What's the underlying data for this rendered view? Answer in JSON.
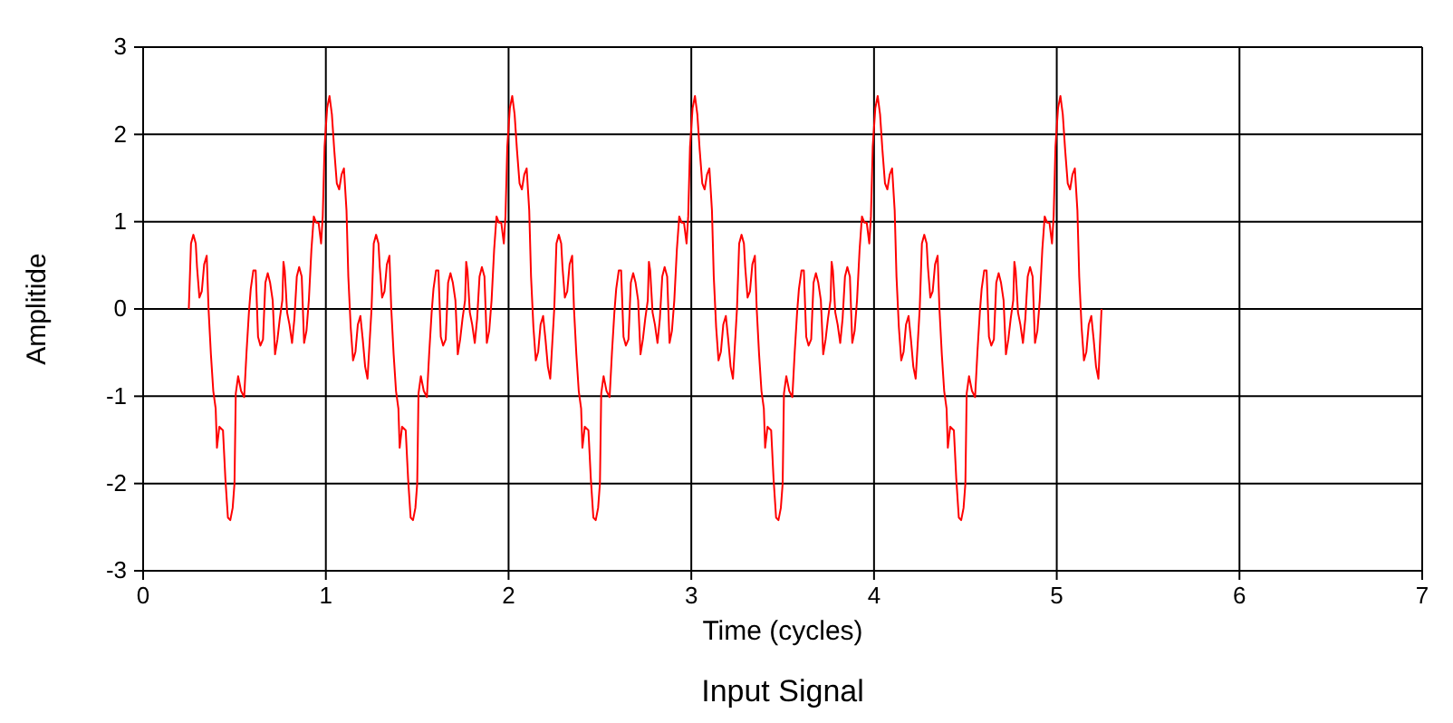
{
  "chart_data": {
    "type": "line",
    "title": "Input Signal",
    "xlabel": "Time (cycles)",
    "ylabel": "Amplitide",
    "xlim": [
      0,
      7
    ],
    "xticks": [
      0,
      1,
      2,
      3,
      4,
      5,
      6,
      7
    ],
    "ylim": [
      -3,
      3
    ],
    "yticks": [
      -3,
      -2,
      -1,
      0,
      1,
      2,
      3
    ],
    "grid": true,
    "marker": "none",
    "line_style": "solid",
    "x": [
      0.25,
      0.262,
      0.275,
      0.288,
      0.295,
      0.308,
      0.321,
      0.334,
      0.348,
      0.358,
      0.371,
      0.384,
      0.397,
      0.404,
      0.417,
      0.437,
      0.45,
      0.464,
      0.477,
      0.49,
      0.5,
      0.507,
      0.52,
      0.536,
      0.553,
      0.566,
      0.579,
      0.589,
      0.603,
      0.616,
      0.629,
      0.642,
      0.656,
      0.669,
      0.682,
      0.695,
      0.709,
      0.722,
      0.735,
      0.748,
      0.762,
      0.768,
      0.775,
      0.788,
      0.801,
      0.815,
      0.828,
      0.841,
      0.854,
      0.868,
      0.881,
      0.894,
      0.907,
      0.921,
      0.934,
      0.947,
      0.96,
      0.974,
      0.983,
      0.993,
      1.007,
      1.02,
      1.033,
      1.046,
      1.06,
      1.073,
      1.086,
      1.099,
      1.113,
      1.123,
      1.136,
      1.149,
      1.162,
      1.175,
      1.189,
      1.202,
      1.215,
      1.228,
      1.25,
      1.262,
      1.275,
      1.288,
      1.295,
      1.308,
      1.321,
      1.334,
      1.348,
      1.358,
      1.371,
      1.384,
      1.397,
      1.404,
      1.417,
      1.437,
      1.45,
      1.464,
      1.477,
      1.49,
      1.5,
      1.507,
      1.52,
      1.536,
      1.553,
      1.566,
      1.579,
      1.589,
      1.603,
      1.616,
      1.629,
      1.642,
      1.656,
      1.669,
      1.682,
      1.695,
      1.709,
      1.722,
      1.735,
      1.748,
      1.762,
      1.768,
      1.775,
      1.788,
      1.801,
      1.815,
      1.828,
      1.841,
      1.854,
      1.868,
      1.881,
      1.894,
      1.907,
      1.921,
      1.934,
      1.947,
      1.96,
      1.974,
      1.983,
      1.993,
      2.007,
      2.02,
      2.033,
      2.046,
      2.06,
      2.073,
      2.086,
      2.099,
      2.113,
      2.123,
      2.136,
      2.149,
      2.162,
      2.175,
      2.189,
      2.202,
      2.215,
      2.228,
      2.25,
      2.262,
      2.275,
      2.288,
      2.295,
      2.308,
      2.321,
      2.334,
      2.348,
      2.358,
      2.371,
      2.384,
      2.397,
      2.404,
      2.417,
      2.437,
      2.45,
      2.464,
      2.477,
      2.49,
      2.5,
      2.507,
      2.52,
      2.536,
      2.553,
      2.566,
      2.579,
      2.589,
      2.603,
      2.616,
      2.629,
      2.642,
      2.656,
      2.669,
      2.682,
      2.695,
      2.709,
      2.722,
      2.735,
      2.748,
      2.762,
      2.768,
      2.775,
      2.788,
      2.801,
      2.815,
      2.828,
      2.841,
      2.854,
      2.868,
      2.881,
      2.894,
      2.907,
      2.921,
      2.934,
      2.947,
      2.96,
      2.974,
      2.983,
      2.993,
      3.007,
      3.02,
      3.033,
      3.046,
      3.06,
      3.073,
      3.086,
      3.099,
      3.113,
      3.123,
      3.136,
      3.149,
      3.162,
      3.175,
      3.189,
      3.202,
      3.215,
      3.228,
      3.25,
      3.262,
      3.275,
      3.288,
      3.295,
      3.308,
      3.321,
      3.334,
      3.348,
      3.358,
      3.371,
      3.384,
      3.397,
      3.404,
      3.417,
      3.437,
      3.45,
      3.464,
      3.477,
      3.49,
      3.5,
      3.507,
      3.52,
      3.536,
      3.553,
      3.566,
      3.579,
      3.589,
      3.603,
      3.616,
      3.629,
      3.642,
      3.656,
      3.669,
      3.682,
      3.695,
      3.709,
      3.722,
      3.735,
      3.748,
      3.762,
      3.768,
      3.775,
      3.788,
      3.801,
      3.815,
      3.828,
      3.841,
      3.854,
      3.868,
      3.881,
      3.894,
      3.907,
      3.921,
      3.934,
      3.947,
      3.96,
      3.974,
      3.983,
      3.993,
      4.007,
      4.02,
      4.033,
      4.046,
      4.06,
      4.073,
      4.086,
      4.099,
      4.113,
      4.123,
      4.136,
      4.149,
      4.162,
      4.175,
      4.189,
      4.202,
      4.215,
      4.228,
      4.25,
      4.262,
      4.275,
      4.288,
      4.295,
      4.308,
      4.321,
      4.334,
      4.348,
      4.358,
      4.371,
      4.384,
      4.397,
      4.404,
      4.417,
      4.437,
      4.45,
      4.464,
      4.477,
      4.49,
      4.5,
      4.507,
      4.52,
      4.536,
      4.553,
      4.566,
      4.579,
      4.589,
      4.603,
      4.616,
      4.629,
      4.642,
      4.656,
      4.669,
      4.682,
      4.695,
      4.709,
      4.722,
      4.735,
      4.748,
      4.762,
      4.768,
      4.775,
      4.788,
      4.801,
      4.815,
      4.828,
      4.841,
      4.854,
      4.868,
      4.881,
      4.894,
      4.907,
      4.921,
      4.934,
      4.947,
      4.96,
      4.974,
      4.983,
      4.993,
      5.007,
      5.02,
      5.033,
      5.046,
      5.06,
      5.073,
      5.086,
      5.099,
      5.113,
      5.123,
      5.136,
      5.149,
      5.162,
      5.175,
      5.189,
      5.202,
      5.215,
      5.228,
      5.245
    ],
    "series": [
      {
        "color": "#ff0000",
        "values": [
          0,
          0.75,
          0.85,
          0.75,
          0.48,
          0.13,
          0.2,
          0.51,
          0.61,
          0,
          -0.52,
          -0.94,
          -1.14,
          -1.59,
          -1.35,
          -1.39,
          -1.94,
          -2.39,
          -2.42,
          -2.28,
          -2,
          -0.97,
          -0.77,
          -0.94,
          -1.01,
          -0.49,
          -0.04,
          0.23,
          0.44,
          0.44,
          -0.32,
          -0.42,
          -0.35,
          0.3,
          0.41,
          0.3,
          0.1,
          -0.52,
          -0.35,
          -0.11,
          0.1,
          0.54,
          0.44,
          -0.04,
          -0.18,
          -0.39,
          -0.11,
          0.37,
          0.48,
          0.37,
          -0.39,
          -0.25,
          0.1,
          0.68,
          1.06,
          0.99,
          0.99,
          0.75,
          1.06,
          1.86,
          2.3,
          2.44,
          2.23,
          1.82,
          1.44,
          1.37,
          1.54,
          1.61,
          1.13,
          0.37,
          -0.21,
          -0.59,
          -0.49,
          -0.18,
          -0.08,
          -0.35,
          -0.66,
          -0.8,
          0,
          0.75,
          0.85,
          0.75,
          0.48,
          0.13,
          0.2,
          0.51,
          0.61,
          0,
          -0.52,
          -0.94,
          -1.14,
          -1.59,
          -1.35,
          -1.39,
          -1.94,
          -2.39,
          -2.42,
          -2.28,
          -2,
          -0.97,
          -0.77,
          -0.94,
          -1.01,
          -0.49,
          -0.04,
          0.23,
          0.44,
          0.44,
          -0.32,
          -0.42,
          -0.35,
          0.3,
          0.41,
          0.3,
          0.1,
          -0.52,
          -0.35,
          -0.11,
          0.1,
          0.54,
          0.44,
          -0.04,
          -0.18,
          -0.39,
          -0.11,
          0.37,
          0.48,
          0.37,
          -0.39,
          -0.25,
          0.1,
          0.68,
          1.06,
          0.99,
          0.99,
          0.75,
          1.06,
          1.86,
          2.3,
          2.44,
          2.23,
          1.82,
          1.44,
          1.37,
          1.54,
          1.61,
          1.13,
          0.37,
          -0.21,
          -0.59,
          -0.49,
          -0.18,
          -0.08,
          -0.35,
          -0.66,
          -0.8,
          0,
          0.75,
          0.85,
          0.75,
          0.48,
          0.13,
          0.2,
          0.51,
          0.61,
          0,
          -0.52,
          -0.94,
          -1.14,
          -1.59,
          -1.35,
          -1.39,
          -1.94,
          -2.39,
          -2.42,
          -2.28,
          -2,
          -0.97,
          -0.77,
          -0.94,
          -1.01,
          -0.49,
          -0.04,
          0.23,
          0.44,
          0.44,
          -0.32,
          -0.42,
          -0.35,
          0.3,
          0.41,
          0.3,
          0.1,
          -0.52,
          -0.35,
          -0.11,
          0.1,
          0.54,
          0.44,
          -0.04,
          -0.18,
          -0.39,
          -0.11,
          0.37,
          0.48,
          0.37,
          -0.39,
          -0.25,
          0.1,
          0.68,
          1.06,
          0.99,
          0.99,
          0.75,
          1.06,
          1.86,
          2.3,
          2.44,
          2.23,
          1.82,
          1.44,
          1.37,
          1.54,
          1.61,
          1.13,
          0.37,
          -0.21,
          -0.59,
          -0.49,
          -0.18,
          -0.08,
          -0.35,
          -0.66,
          -0.8,
          0,
          0.75,
          0.85,
          0.75,
          0.48,
          0.13,
          0.2,
          0.51,
          0.61,
          0,
          -0.52,
          -0.94,
          -1.14,
          -1.59,
          -1.35,
          -1.39,
          -1.94,
          -2.39,
          -2.42,
          -2.28,
          -2,
          -0.97,
          -0.77,
          -0.94,
          -1.01,
          -0.49,
          -0.04,
          0.23,
          0.44,
          0.44,
          -0.32,
          -0.42,
          -0.35,
          0.3,
          0.41,
          0.3,
          0.1,
          -0.52,
          -0.35,
          -0.11,
          0.1,
          0.54,
          0.44,
          -0.04,
          -0.18,
          -0.39,
          -0.11,
          0.37,
          0.48,
          0.37,
          -0.39,
          -0.25,
          0.1,
          0.68,
          1.06,
          0.99,
          0.99,
          0.75,
          1.06,
          1.86,
          2.3,
          2.44,
          2.23,
          1.82,
          1.44,
          1.37,
          1.54,
          1.61,
          1.13,
          0.37,
          -0.21,
          -0.59,
          -0.49,
          -0.18,
          -0.08,
          -0.35,
          -0.66,
          -0.8,
          0,
          0.75,
          0.85,
          0.75,
          0.48,
          0.13,
          0.2,
          0.51,
          0.61,
          0,
          -0.52,
          -0.94,
          -1.14,
          -1.59,
          -1.35,
          -1.39,
          -1.94,
          -2.39,
          -2.42,
          -2.28,
          -2,
          -0.97,
          -0.77,
          -0.94,
          -1.01,
          -0.49,
          -0.04,
          0.23,
          0.44,
          0.44,
          -0.32,
          -0.42,
          -0.35,
          0.3,
          0.41,
          0.3,
          0.1,
          -0.52,
          -0.35,
          -0.11,
          0.1,
          0.54,
          0.44,
          -0.04,
          -0.18,
          -0.39,
          -0.11,
          0.37,
          0.48,
          0.37,
          -0.39,
          -0.25,
          0.1,
          0.68,
          1.06,
          0.99,
          0.99,
          0.75,
          1.06,
          1.86,
          2.3,
          2.44,
          2.23,
          1.82,
          1.44,
          1.37,
          1.54,
          1.61,
          1.13,
          0.37,
          -0.21,
          -0.59,
          -0.49,
          -0.18,
          -0.08,
          -0.35,
          -0.66,
          -0.8,
          0
        ]
      }
    ]
  }
}
